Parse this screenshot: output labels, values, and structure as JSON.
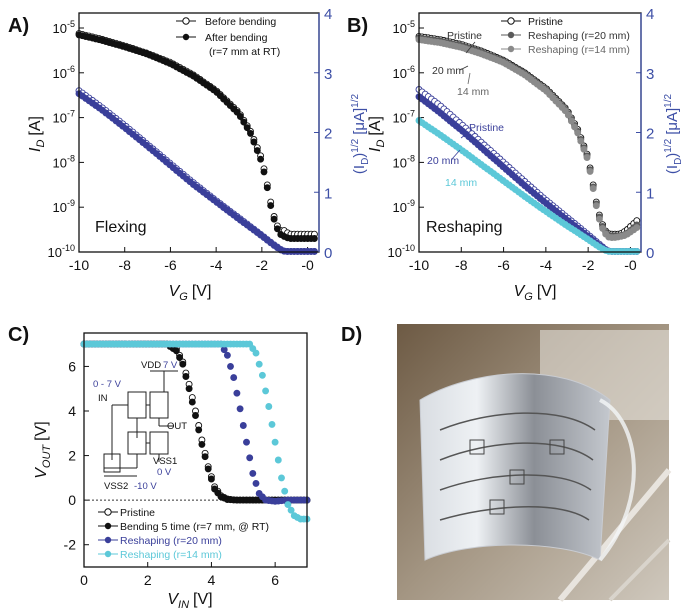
{
  "panels": {
    "A": {
      "label": "A)",
      "xlabel": {
        "main": "V",
        "sub": "G",
        "unit": "[V]"
      },
      "ylabel": {
        "main": "I",
        "sub": "D",
        "unit": "[A]"
      },
      "y2label": {
        "pre": "(I",
        "sub": "D",
        "post": ")",
        "sup": "1/2",
        "unit": "[μA]",
        "sup2": "1/2"
      },
      "note": "Flexing",
      "legend": [
        {
          "label": "Before bending",
          "marker": "open-circle"
        },
        {
          "label": "After bending",
          "marker": "filled-circle"
        },
        {
          "label": "(r=7 mm at RT)",
          "marker": "none"
        }
      ]
    },
    "B": {
      "label": "B)",
      "xlabel": {
        "main": "V",
        "sub": "G",
        "unit": "[V]"
      },
      "ylabel": {
        "main": "I",
        "sub": "D",
        "unit": "[A]"
      },
      "y2label": {
        "pre": "(I",
        "sub": "D",
        "post": ")",
        "sup": "1/2",
        "unit": "[μA]",
        "sup2": "1/2"
      },
      "note": "Reshaping",
      "legend": [
        {
          "label": "Pristine",
          "marker": "open-circle"
        },
        {
          "label": "Reshaping (r=20 mm)",
          "marker": "filled-circle"
        },
        {
          "label": "Reshaping (r=14 mm)",
          "marker": "filled-circle"
        }
      ],
      "annotations": [
        "Pristine",
        "20 mm",
        "14 mm",
        "Pristine",
        "20 mm",
        "14 mm"
      ]
    },
    "C": {
      "label": "C)",
      "xlabel": {
        "main": "V",
        "sub": "IN",
        "unit": "[V]"
      },
      "ylabel": {
        "main": "V",
        "sub": "OUT",
        "unit": "[V]"
      },
      "legend": [
        {
          "label": "Pristine",
          "marker": "open-circle"
        },
        {
          "label": "Bending 5 time (r=7 mm, @ RT)",
          "marker": "filled-circle"
        },
        {
          "label": "Reshaping (r=20 mm)",
          "marker": "filled-circle"
        },
        {
          "label": "Reshaping (r=14 mm)",
          "marker": "filled-circle"
        }
      ],
      "circuit": {
        "vdd": "VDD",
        "vdd_val": "7 V",
        "in_range": "0 - 7 V",
        "in": "IN",
        "out": "OUT",
        "vss1": "VSS1",
        "vss1_val": "0 V",
        "vss2": "VSS2",
        "vss2_val": "-10 V"
      }
    },
    "D": {
      "label": "D)"
    }
  },
  "colors": {
    "black": "#111111",
    "blue": "#3a3f9a",
    "gray": "#5a5a5a",
    "cyan": "#5cc8d8",
    "axis_blue": "#3d4fa6"
  },
  "chart_data": [
    {
      "type": "scatter",
      "panel": "A",
      "x_axis": {
        "label": "V_G [V]",
        "range": [
          -10,
          0.5
        ],
        "ticks": [
          "-10",
          "-8",
          "-6",
          "-4",
          "-2",
          "-0"
        ]
      },
      "y_axis": {
        "label": "I_D [A]",
        "scale": "log",
        "range": [
          1e-10,
          1e-05
        ],
        "ticks": [
          "10^-10",
          "10^-9",
          "10^-8",
          "10^-7",
          "10^-6",
          "10^-5"
        ]
      },
      "y2_axis": {
        "label": "(I_D)^1/2 [μA]^1/2",
        "range": [
          0,
          4
        ],
        "ticks": [
          "0",
          "1",
          "2",
          "3",
          "4"
        ]
      },
      "series": [
        {
          "name": "Before bending",
          "marker": "open",
          "color": "#111111",
          "axis": "left",
          "x": [
            -10,
            -9,
            -8,
            -7,
            -6,
            -5,
            -4,
            -3,
            -2.5,
            -2,
            -1.8,
            -1.6,
            -1.4,
            -1.2,
            -1.0,
            -0.8,
            -0.5,
            -0.2,
            0.3
          ],
          "y": [
            7.5e-06,
            5.6e-06,
            4e-06,
            2.7e-06,
            1.7e-06,
            9e-07,
            4e-07,
            1.3e-07,
            5e-08,
            1.2e-08,
            4e-09,
            1.2e-09,
            4.5e-10,
            3e-10,
            3e-10,
            2.5e-10,
            2.5e-10,
            2.5e-10,
            2.5e-10
          ]
        },
        {
          "name": "After bending",
          "marker": "filled",
          "color": "#111111",
          "axis": "left",
          "x": [
            -10,
            -9,
            -8,
            -7,
            -6,
            -5,
            -4,
            -3,
            -2.5,
            -2,
            -1.8,
            -1.6,
            -1.4,
            -1.2,
            -1.0,
            -0.8,
            -0.5,
            -0.2,
            0.3
          ],
          "y": [
            7e-06,
            5.3e-06,
            3.8e-06,
            2.6e-06,
            1.6e-06,
            8.5e-07,
            3.8e-07,
            1.2e-07,
            4.5e-08,
            1e-08,
            3.5e-09,
            1e-09,
            4e-10,
            2.5e-10,
            2.2e-10,
            2e-10,
            2e-10,
            2e-10,
            2e-10
          ]
        },
        {
          "name": "Before bending (sqrt)",
          "marker": "open",
          "color": "#3a3f9a",
          "axis": "right",
          "x": [
            -10,
            -9,
            -8,
            -7,
            -6,
            -5,
            -4,
            -3,
            -2,
            -1.5,
            -1.2,
            -1.0,
            -0.5,
            0,
            0.3
          ],
          "y": [
            2.7,
            2.42,
            2.12,
            1.8,
            1.48,
            1.16,
            0.86,
            0.57,
            0.28,
            0.13,
            0.05,
            0.01,
            0.01,
            0.01,
            0.01
          ]
        },
        {
          "name": "After bending (sqrt)",
          "marker": "filled",
          "color": "#3a3f9a",
          "axis": "right",
          "x": [
            -10,
            -9,
            -8,
            -7,
            -6,
            -5,
            -4,
            -3,
            -2,
            -1.5,
            -1.2,
            -1.0,
            -0.5,
            0,
            0.3
          ],
          "y": [
            2.65,
            2.38,
            2.08,
            1.77,
            1.45,
            1.13,
            0.84,
            0.55,
            0.27,
            0.12,
            0.04,
            0.01,
            0.01,
            0.01,
            0.01
          ]
        }
      ]
    },
    {
      "type": "scatter",
      "panel": "B",
      "x_axis": {
        "label": "V_G [V]",
        "range": [
          -10,
          0.5
        ],
        "ticks": [
          "-10",
          "-8",
          "-6",
          "-4",
          "-2",
          "-0"
        ]
      },
      "y_axis": {
        "label": "I_D [A]",
        "scale": "log",
        "range": [
          1e-10,
          1e-05
        ],
        "ticks": [
          "10^-10",
          "10^-9",
          "10^-8",
          "10^-7",
          "10^-6",
          "10^-5"
        ]
      },
      "y2_axis": {
        "label": "(I_D)^1/2 [μA]^1/2",
        "range": [
          0,
          4
        ],
        "ticks": [
          "0",
          "1",
          "2",
          "3",
          "4"
        ]
      },
      "series": [
        {
          "name": "Pristine",
          "marker": "open",
          "color": "#111111",
          "axis": "left",
          "x": [
            -10,
            -9,
            -8,
            -7,
            -6,
            -5,
            -4,
            -3,
            -2.5,
            -2,
            -1.8,
            -1.6,
            -1.4,
            -1.2,
            -1.0,
            -0.8,
            -0.5,
            -0.2,
            0.3
          ],
          "y": [
            6.5e-06,
            5.5e-06,
            4.3e-06,
            3e-06,
            1.9e-06,
            1e-06,
            4.5e-07,
            1.5e-07,
            5.5e-08,
            1.3e-08,
            4e-09,
            1.2e-09,
            5e-10,
            3e-10,
            2.5e-10,
            2.5e-10,
            2.5e-10,
            3e-10,
            5e-10
          ]
        },
        {
          "name": "Reshaping (r=20 mm)",
          "marker": "filled",
          "color": "#5a5a5a",
          "axis": "left",
          "x": [
            -10,
            -9,
            -8,
            -7,
            -6,
            -5,
            -4,
            -3,
            -2.5,
            -2,
            -1.8,
            -1.6,
            -1.4,
            -1.2,
            -1.0,
            -0.8,
            -0.5,
            -0.2,
            0.3
          ],
          "y": [
            6e-06,
            5.1e-06,
            4e-06,
            2.8e-06,
            1.8e-06,
            9.5e-07,
            4.2e-07,
            1.4e-07,
            5e-08,
            1.2e-08,
            3.6e-09,
            1.1e-09,
            4.5e-10,
            2.8e-10,
            2.3e-10,
            2.3e-10,
            2.3e-10,
            2.5e-10,
            4e-10
          ]
        },
        {
          "name": "Reshaping (r=14 mm)",
          "marker": "filled",
          "color": "#8a8a8a",
          "axis": "left",
          "x": [
            -10,
            -9,
            -8,
            -7,
            -6,
            -5,
            -4,
            -3,
            -2.5,
            -2,
            -1.8,
            -1.6,
            -1.4,
            -1.2,
            -1.0,
            -0.8,
            -0.5,
            -0.2,
            0.3
          ],
          "y": [
            5.5e-06,
            4.7e-06,
            3.7e-06,
            2.6e-06,
            1.7e-06,
            9e-07,
            4e-07,
            1.3e-07,
            4.6e-08,
            1.1e-08,
            3.3e-09,
            1e-09,
            4e-10,
            2.6e-10,
            2.1e-10,
            2.1e-10,
            2.2e-10,
            2.4e-10,
            3.5e-10
          ]
        },
        {
          "name": "Pristine (sqrt)",
          "marker": "open",
          "color": "#3a3f9a",
          "axis": "right",
          "x": [
            -10,
            -9,
            -8,
            -7,
            -6,
            -5,
            -4,
            -3,
            -2,
            -1.5,
            -1.2,
            -1.0,
            -0.5,
            0,
            0.3
          ],
          "y": [
            2.72,
            2.45,
            2.14,
            1.82,
            1.5,
            1.18,
            0.87,
            0.58,
            0.29,
            0.14,
            0.05,
            0.01,
            0.01,
            0.01,
            0.01
          ]
        },
        {
          "name": "Reshaping (r=20 mm) (sqrt)",
          "marker": "filled",
          "color": "#3a3f9a",
          "axis": "right",
          "x": [
            -10,
            -9,
            -8,
            -7,
            -6,
            -5,
            -4,
            -3,
            -2,
            -1.5,
            -1.2,
            -1.0,
            -0.5,
            0,
            0.3
          ],
          "y": [
            2.6,
            2.33,
            2.04,
            1.73,
            1.42,
            1.11,
            0.82,
            0.54,
            0.26,
            0.12,
            0.04,
            0.01,
            0.01,
            0.01,
            0.01
          ]
        },
        {
          "name": "Reshaping (r=14 mm) (sqrt)",
          "marker": "filled",
          "color": "#5cc8d8",
          "axis": "right",
          "x": [
            -10,
            -9,
            -8,
            -7,
            -6,
            -5,
            -4,
            -3,
            -2,
            -1.5,
            -1.2,
            -1.0,
            -0.5,
            0,
            0.3
          ],
          "y": [
            2.2,
            1.96,
            1.71,
            1.45,
            1.19,
            0.93,
            0.68,
            0.44,
            0.21,
            0.09,
            0.03,
            0.01,
            0.01,
            0.01,
            0.01
          ]
        }
      ]
    },
    {
      "type": "scatter",
      "panel": "C",
      "x_axis": {
        "label": "V_IN [V]",
        "range": [
          0,
          7
        ],
        "ticks": [
          "0",
          "2",
          "4",
          "6"
        ]
      },
      "y_axis": {
        "label": "V_OUT [V]",
        "range": [
          -3,
          7.5
        ],
        "ticks": [
          "-2",
          "0",
          "2",
          "4",
          "6"
        ]
      },
      "series": [
        {
          "name": "Pristine",
          "marker": "open",
          "color": "#111111",
          "x": [
            0,
            2.6,
            2.9,
            3.1,
            3.3,
            3.5,
            3.7,
            3.9,
            4.1,
            4.3,
            4.5,
            4.8,
            5.2,
            6,
            7
          ],
          "y": [
            7,
            7,
            6.8,
            6.2,
            5.2,
            4.0,
            2.7,
            1.5,
            0.6,
            0.2,
            0.05,
            0,
            0,
            0,
            0
          ]
        },
        {
          "name": "Bending 5 time (r=7 mm, @ RT)",
          "marker": "filled",
          "color": "#111111",
          "x": [
            0,
            2.6,
            2.9,
            3.1,
            3.3,
            3.5,
            3.7,
            3.9,
            4.1,
            4.3,
            4.5,
            4.8,
            5.2,
            6,
            7
          ],
          "y": [
            7,
            7,
            6.7,
            6.1,
            5.0,
            3.8,
            2.5,
            1.4,
            0.5,
            0.15,
            0.03,
            0,
            0,
            0,
            0
          ]
        },
        {
          "name": "Reshaping (r=20 mm)",
          "marker": "filled",
          "color": "#3a3f9a",
          "x": [
            0,
            4.3,
            4.5,
            4.7,
            4.9,
            5.1,
            5.3,
            5.5,
            5.7,
            6.0,
            6.4,
            7
          ],
          "y": [
            7,
            7,
            6.5,
            5.5,
            4.1,
            2.6,
            1.2,
            0.3,
            0.0,
            -0.05,
            0,
            0
          ]
        },
        {
          "name": "Reshaping (r=14 mm)",
          "marker": "filled",
          "color": "#5cc8d8",
          "x": [
            0,
            5.2,
            5.4,
            5.6,
            5.8,
            6.0,
            6.2,
            6.4,
            6.6,
            6.8,
            7
          ],
          "y": [
            7,
            7,
            6.6,
            5.6,
            4.2,
            2.6,
            1.0,
            -0.2,
            -0.7,
            -0.85,
            -0.85
          ]
        }
      ]
    }
  ]
}
